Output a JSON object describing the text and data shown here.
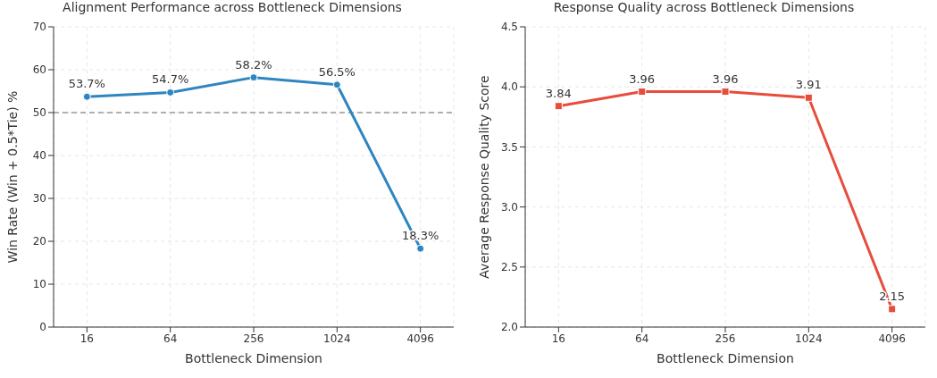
{
  "chart_data": [
    {
      "type": "line",
      "title": "Alignment Performance across Bottleneck Dimensions",
      "xlabel": "Bottleneck Dimension",
      "ylabel": "Win Rate (Win + 0.5*Tie) %",
      "categories": [
        "16",
        "64",
        "256",
        "1024",
        "4096"
      ],
      "series": [
        {
          "color": "#2e86c1",
          "values": [
            53.7,
            54.7,
            58.2,
            56.5,
            18.3
          ],
          "value_labels": [
            "53.7%",
            "54.7%",
            "58.2%",
            "56.5%",
            "18.3%"
          ]
        }
      ],
      "ylim": [
        0,
        70
      ],
      "yticks": [
        0,
        10,
        20,
        30,
        40,
        50,
        60,
        70
      ],
      "grid": true,
      "marker": "circle",
      "line_style": "solid",
      "ref_lines": [
        {
          "axis": "y",
          "value": 50,
          "label": null,
          "color": "#999999",
          "line_style": "dashed"
        }
      ]
    },
    {
      "type": "line",
      "title": "Response Quality across Bottleneck Dimensions",
      "xlabel": "Bottleneck Dimension",
      "ylabel": "Average Response Quality Score",
      "categories": [
        "16",
        "64",
        "256",
        "1024",
        "4096"
      ],
      "series": [
        {
          "color": "#e74c3c",
          "values": [
            3.84,
            3.96,
            3.96,
            3.91,
            2.15
          ]
        }
      ],
      "ylim": [
        2.0,
        4.5
      ],
      "yticks": [
        {
          "value": 2,
          "label": "2.0"
        },
        {
          "value": 2.5,
          "label": "2.5"
        },
        {
          "value": 3,
          "label": "3.0"
        },
        {
          "value": 3.5,
          "label": "3.5"
        },
        {
          "value": 4,
          "label": "4.0"
        },
        {
          "value": 4.5,
          "label": "4.5"
        }
      ],
      "grid": true,
      "marker": "square",
      "line_style": "solid",
      "data_labels": true
    }
  ]
}
